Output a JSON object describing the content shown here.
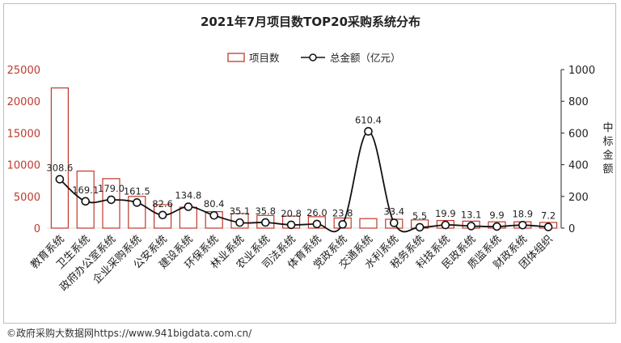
{
  "chart_data": {
    "type": "bar",
    "title": "2021年7月项目数TOP20采购系统分布",
    "categories": [
      "教育系统",
      "卫生系统",
      "政府办公室系统",
      "企业采购系统",
      "公安系统",
      "建设系统",
      "环保系统",
      "林业系统",
      "农业系统",
      "司法系统",
      "体育系统",
      "党政系统",
      "交通系统",
      "水利系统",
      "税务系统",
      "科技系统",
      "民政系统",
      "质监系统",
      "财政系统",
      "团体组织"
    ],
    "series": [
      {
        "name": "项目数",
        "type": "bar",
        "axis": "left",
        "color": "#c0392b",
        "values": [
          22100,
          9000,
          7800,
          5000,
          3700,
          3300,
          2600,
          2300,
          2000,
          1900,
          1800,
          1600,
          1500,
          1400,
          1300,
          1200,
          1100,
          1000,
          1000,
          900
        ]
      },
      {
        "name": "总金额（亿元）",
        "type": "line",
        "axis": "right",
        "color": "#111111",
        "values": [
          308.6,
          169.1,
          179.0,
          161.5,
          82.6,
          134.8,
          80.4,
          35.1,
          35.8,
          20.8,
          26.0,
          23.8,
          610.4,
          33.4,
          5.5,
          19.9,
          13.1,
          9.9,
          18.9,
          7.2
        ],
        "labels": [
          "308.6",
          "169.1",
          "179.0",
          "161.5",
          "82.6",
          "134.8",
          "80.4",
          "35.1",
          "35.8",
          "20.8",
          "26.0",
          "23.8",
          "610.4",
          "33.4",
          "5.5",
          "19.9",
          "13.1",
          "9.9",
          "18.9",
          "7.2"
        ]
      }
    ],
    "y_left": {
      "range": [
        0,
        25000
      ],
      "ticks": [
        "0",
        "5000",
        "10000",
        "15000",
        "20000",
        "25000"
      ],
      "color": "#c0392b"
    },
    "y_right": {
      "range": [
        0,
        1000
      ],
      "ticks": [
        "0",
        "200",
        "400",
        "600",
        "800",
        "1000"
      ],
      "label": "中标金额"
    },
    "legend": {
      "placement": "top-center"
    },
    "grid": false
  },
  "source": "©政府采购大数据网https://www.941bigdata.com.cn/"
}
